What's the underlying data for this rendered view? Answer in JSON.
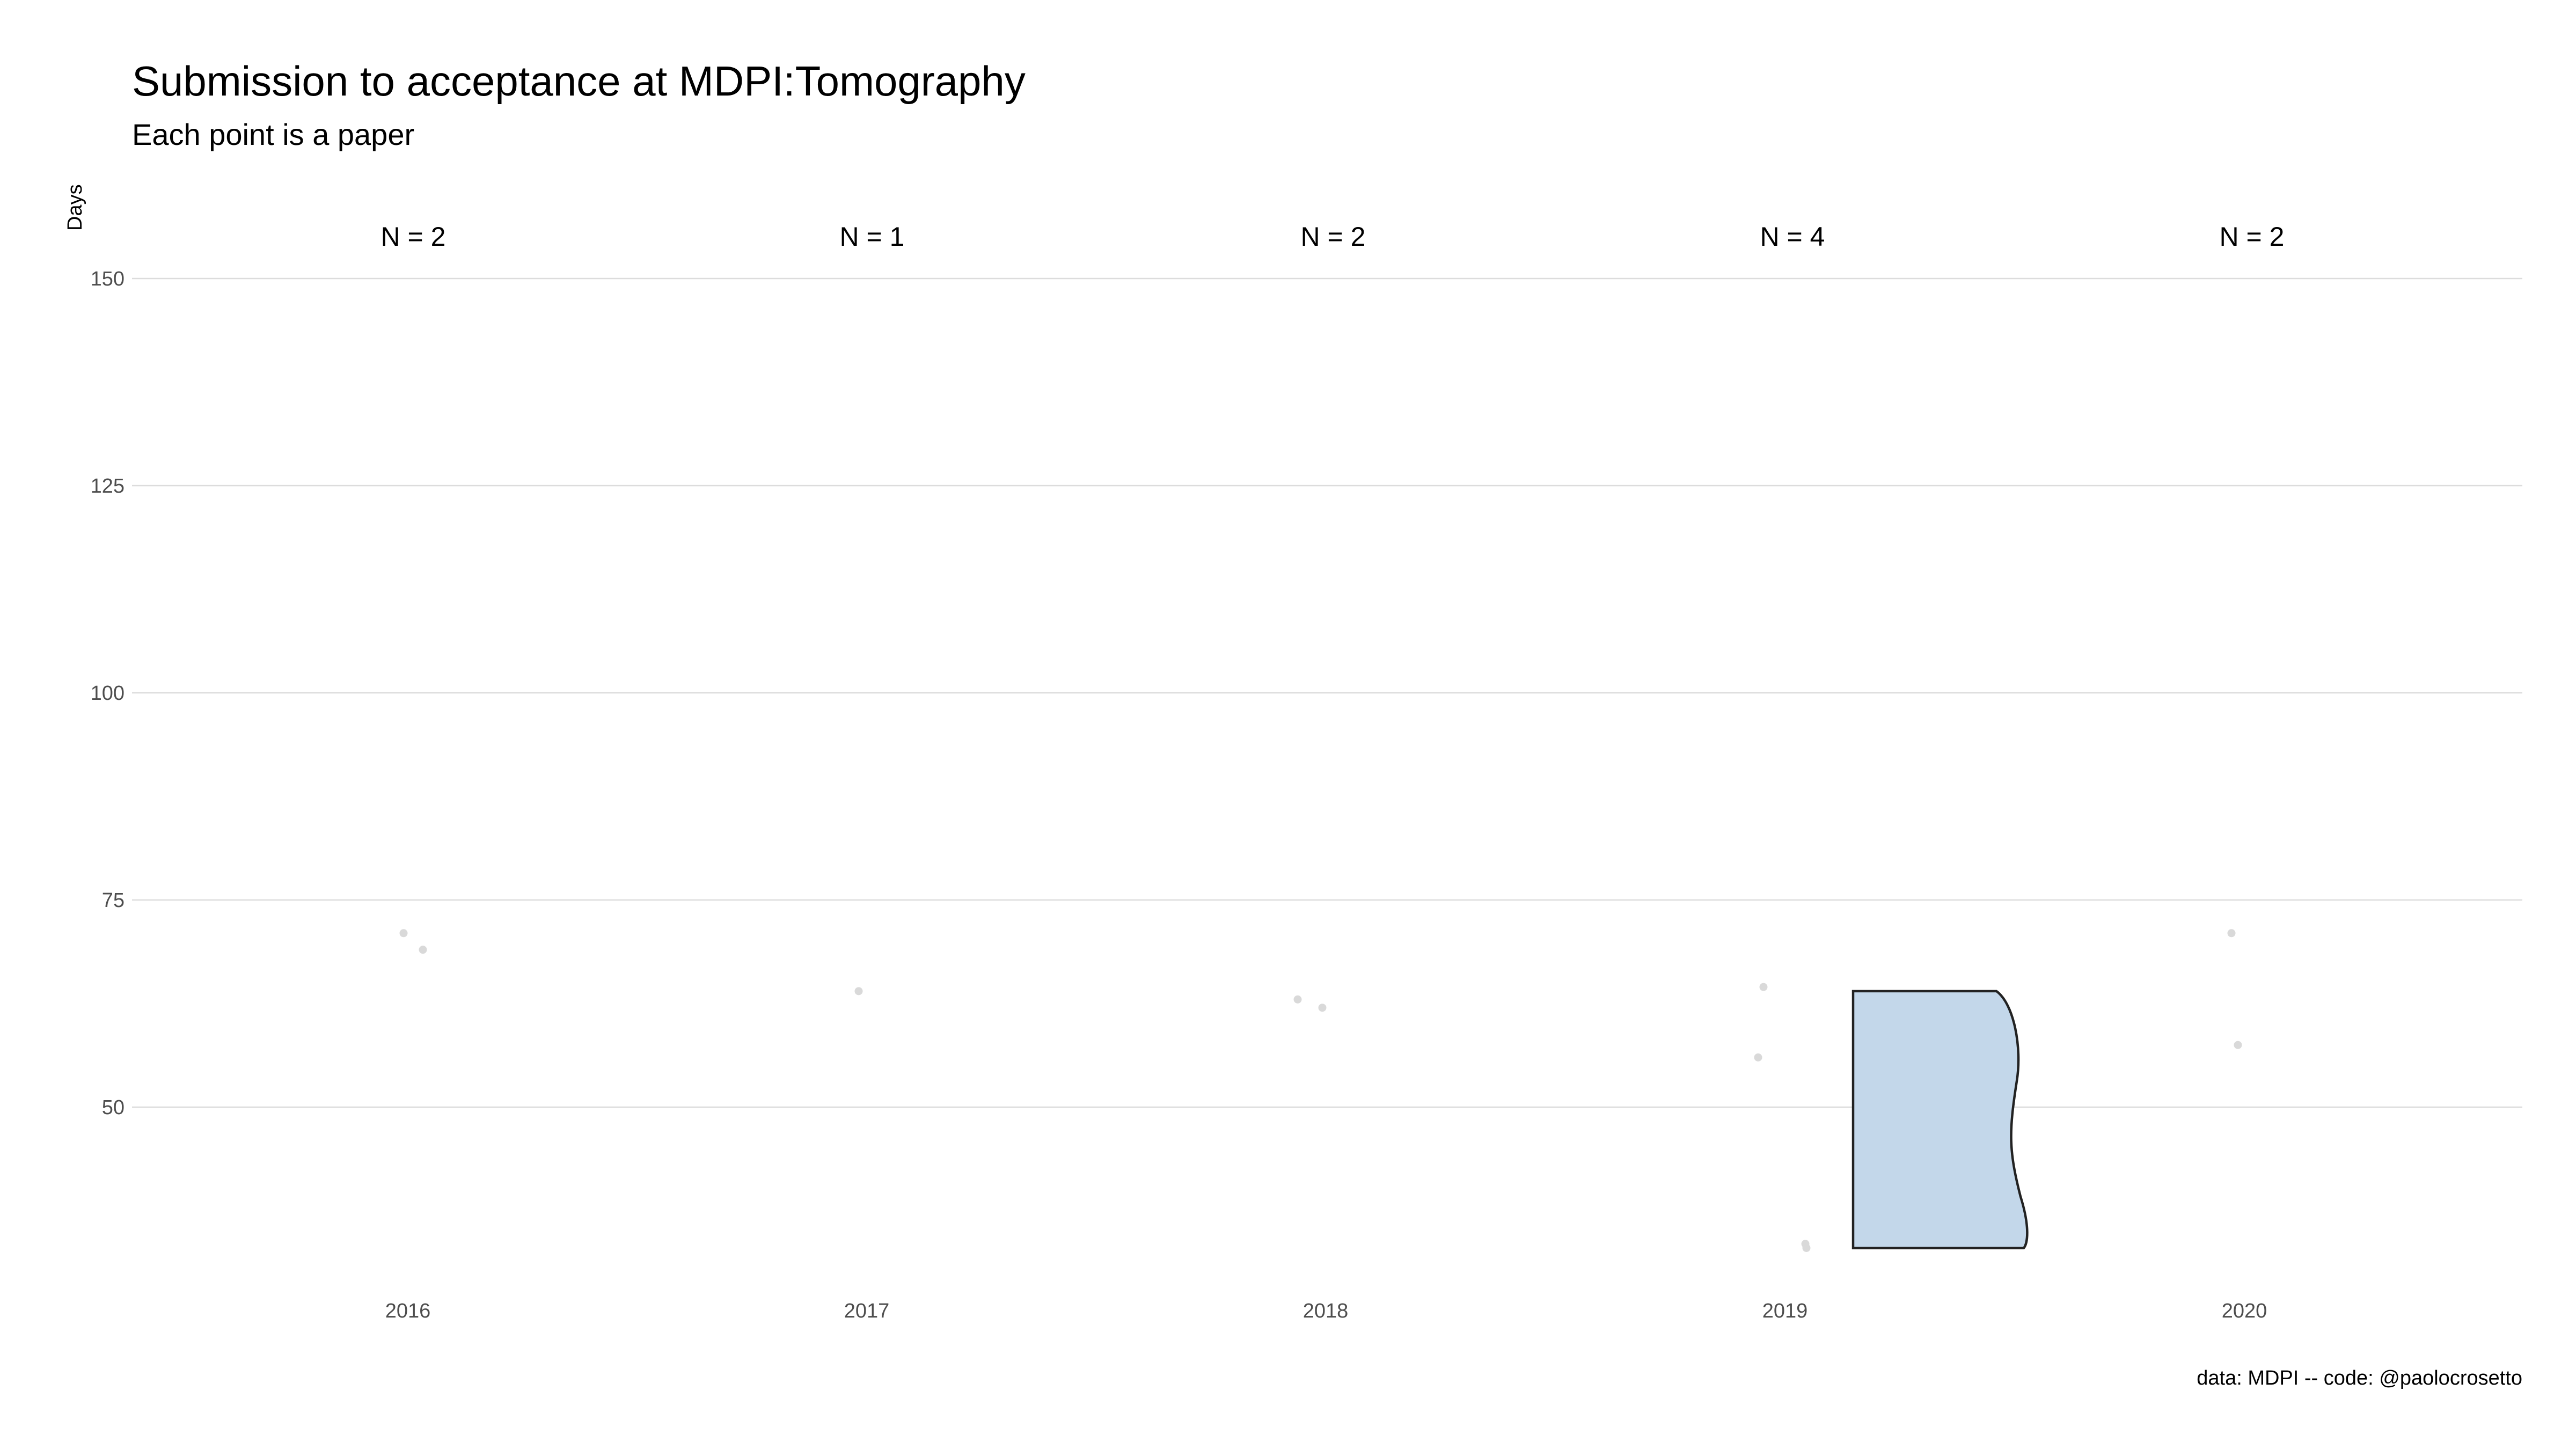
{
  "chart_data": {
    "type": "violin",
    "title": "Submission to acceptance at MDPI:Tomography",
    "subtitle": "Each point is a paper",
    "ylabel": "Days",
    "xlabel": "",
    "caption": "data: MDPI -- code: @paolocrosetto",
    "categories": [
      "2016",
      "2017",
      "2018",
      "2019",
      "2020"
    ],
    "ylim": [
      30,
      150
    ],
    "yticks": [
      50,
      75,
      100,
      125,
      150
    ],
    "grid": true,
    "counts": [
      {
        "category": "2016",
        "label": "N = 2"
      },
      {
        "category": "2017",
        "label": "N = 1"
      },
      {
        "category": "2018",
        "label": "N = 2"
      },
      {
        "category": "2019",
        "label": "N = 4"
      },
      {
        "category": "2020",
        "label": "N = 2"
      }
    ],
    "points": [
      {
        "category": "2016",
        "values": [
          71,
          69
        ]
      },
      {
        "category": "2017",
        "values": [
          64
        ]
      },
      {
        "category": "2018",
        "values": [
          63,
          62
        ]
      },
      {
        "category": "2019",
        "values": [
          64.5,
          56,
          33.5,
          33
        ]
      },
      {
        "category": "2020",
        "values": [
          71,
          57.5
        ]
      }
    ],
    "violins": [
      {
        "category": "2019",
        "min": 33,
        "max": 64,
        "fill": "#c3d7ea",
        "side": "right"
      }
    ],
    "colors": {
      "points": "#d9d9d9",
      "grid": "#dcdcdc",
      "violin_fill": "#c3d7ea",
      "violin_stroke": "#222222"
    }
  }
}
